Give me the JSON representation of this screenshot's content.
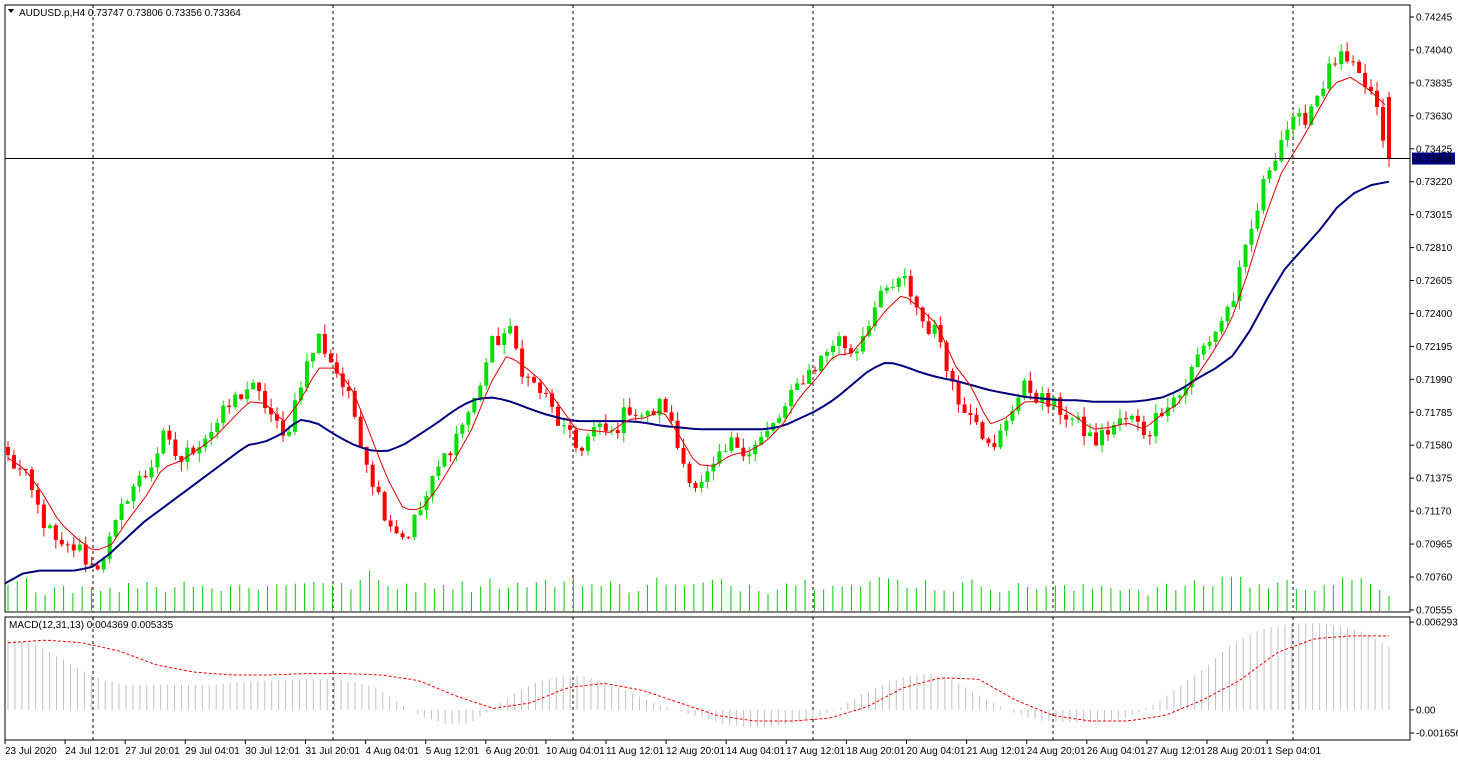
{
  "header": {
    "symbol_line": "AUDUSD.p,H4  0.73747 0.73806 0.73356 0.73364",
    "indicator_line": "MACD(12,31,13) 0.004369 0.005335"
  },
  "colors": {
    "bull": "#00e000",
    "bear": "#ff0000",
    "ma_fast": "#e00000",
    "ma_slow": "#000080",
    "volume": "#00cc00",
    "macd_hist": "#c0c0c0",
    "macd_signal": "#ff0000",
    "current_price_bg": "#000080"
  },
  "chart_data": [
    {
      "type": "candlestick",
      "symbol": "AUDUSD.p",
      "timeframe": "H4",
      "ohlc_header": {
        "open": 0.73747,
        "high": 0.73806,
        "low": 0.73356,
        "close": 0.73364
      },
      "current_price": 0.73364,
      "current_price_label": "0.73364",
      "ylim": [
        0.70555,
        0.74245
      ],
      "y_ticks": [
        "0.74245",
        "0.74040",
        "0.73835",
        "0.73630",
        "0.73425",
        "0.73220",
        "0.73015",
        "0.72810",
        "0.72605",
        "0.72400",
        "0.72195",
        "0.71990",
        "0.71785",
        "0.71580",
        "0.71375",
        "0.71170",
        "0.70965",
        "0.70760",
        "0.70555"
      ],
      "x_ticks": [
        "23 Jul 2020",
        "24 Jul 12:01",
        "27 Jul 20:01",
        "29 Jul 04:01",
        "30 Jul 12:01",
        "31 Jul 20:01",
        "4 Aug 04:01",
        "5 Aug 12:01",
        "6 Aug 20:01",
        "10 Aug 04:01",
        "11 Aug 12:01",
        "12 Aug 20:01",
        "14 Aug 04:01",
        "17 Aug 12:01",
        "18 Aug 20:01",
        "20 Aug 04:01",
        "21 Aug 12:01",
        "24 Aug 20:01",
        "26 Aug 04:01",
        "27 Aug 12:01",
        "28 Aug 20:01",
        "1 Sep 04:01"
      ],
      "close_path": [
        0.715,
        0.7138,
        0.7112,
        0.7092,
        0.7095,
        0.708,
        0.71,
        0.713,
        0.714,
        0.7162,
        0.7148,
        0.716,
        0.717,
        0.7185,
        0.7195,
        0.7182,
        0.716,
        0.72,
        0.7225,
        0.7205,
        0.718,
        0.714,
        0.7112,
        0.71,
        0.712,
        0.7145,
        0.7165,
        0.7185,
        0.722,
        0.723,
        0.72,
        0.719,
        0.717,
        0.7155,
        0.7168,
        0.7165,
        0.7182,
        0.7175,
        0.7185,
        0.715,
        0.713,
        0.7145,
        0.716,
        0.7155,
        0.7165,
        0.718,
        0.72,
        0.721,
        0.7225,
        0.7215,
        0.724,
        0.7255,
        0.726,
        0.7235,
        0.7225,
        0.7185,
        0.718,
        0.715,
        0.718,
        0.7195,
        0.7185,
        0.718,
        0.717,
        0.716,
        0.717,
        0.7175,
        0.7165,
        0.7185,
        0.719,
        0.7215,
        0.723,
        0.725,
        0.729,
        0.733,
        0.7355,
        0.736,
        0.738,
        0.74,
        0.739,
        0.7376,
        0.7336
      ],
      "ma_fast_path": [
        0.715,
        0.7143,
        0.7128,
        0.711,
        0.71,
        0.7092,
        0.7096,
        0.7112,
        0.7126,
        0.7144,
        0.7148,
        0.7155,
        0.7163,
        0.7174,
        0.7185,
        0.7184,
        0.7172,
        0.7186,
        0.7206,
        0.7206,
        0.7193,
        0.7166,
        0.7138,
        0.7118,
        0.7118,
        0.7132,
        0.715,
        0.7169,
        0.7196,
        0.7214,
        0.7207,
        0.7198,
        0.7183,
        0.7168,
        0.7167,
        0.7166,
        0.7174,
        0.7175,
        0.718,
        0.7164,
        0.7146,
        0.7145,
        0.7152,
        0.7154,
        0.716,
        0.7171,
        0.7188,
        0.72,
        0.7214,
        0.7215,
        0.7228,
        0.7242,
        0.7252,
        0.7243,
        0.7233,
        0.7208,
        0.7194,
        0.7171,
        0.7175,
        0.7185,
        0.7185,
        0.7182,
        0.7176,
        0.7168,
        0.7169,
        0.7172,
        0.7168,
        0.7177,
        0.7184,
        0.72,
        0.7216,
        0.7234,
        0.7264,
        0.7299,
        0.7328,
        0.7345,
        0.7364,
        0.7383,
        0.7387,
        0.738,
        0.737
      ],
      "ma_slow_path": [
        0.7072,
        0.7078,
        0.708,
        0.708,
        0.708,
        0.7082,
        0.709,
        0.71,
        0.711,
        0.7118,
        0.7126,
        0.7134,
        0.7142,
        0.715,
        0.7158,
        0.716,
        0.7165,
        0.7174,
        0.7172,
        0.7165,
        0.7159,
        0.7155,
        0.7154,
        0.7158,
        0.7165,
        0.7172,
        0.718,
        0.7186,
        0.7188,
        0.7186,
        0.7182,
        0.7178,
        0.7175,
        0.7173,
        0.7173,
        0.7173,
        0.7173,
        0.7172,
        0.717,
        0.7169,
        0.7168,
        0.7168,
        0.7168,
        0.7168,
        0.7168,
        0.717,
        0.7175,
        0.718,
        0.7187,
        0.7196,
        0.7205,
        0.721,
        0.7207,
        0.7203,
        0.72,
        0.7198,
        0.7195,
        0.7192,
        0.719,
        0.7188,
        0.7187,
        0.7186,
        0.7186,
        0.7185,
        0.7185,
        0.7185,
        0.7186,
        0.7188,
        0.7193,
        0.72,
        0.7206,
        0.7214,
        0.723,
        0.725,
        0.7268,
        0.728,
        0.7292,
        0.7306,
        0.7315,
        0.732,
        0.7322
      ],
      "volume": [
        0.55,
        0.7,
        0.45,
        0.6,
        0.5,
        0.65,
        0.4,
        0.55,
        0.7,
        0.5,
        0.6,
        0.75,
        0.45,
        0.6,
        0.5,
        0.65,
        0.55,
        0.7,
        0.8,
        0.5,
        0.6,
        0.9,
        0.55,
        0.65,
        0.5,
        0.7,
        0.6,
        0.55,
        0.75,
        0.5,
        0.65,
        0.6,
        0.7,
        0.8,
        0.55,
        0.6,
        0.5,
        0.65,
        0.75,
        0.5,
        0.6,
        0.7,
        0.55,
        0.6,
        0.5,
        0.65,
        0.7,
        0.6,
        0.75,
        0.55,
        0.65,
        0.8,
        0.6,
        0.7,
        0.5,
        0.55,
        0.65,
        0.6,
        0.5,
        0.55,
        0.6,
        0.5,
        0.45,
        0.55,
        0.6,
        0.5,
        0.45,
        0.5,
        0.55,
        0.6,
        0.65,
        1.0,
        0.55,
        0.6,
        0.65,
        0.55,
        0.6,
        0.7,
        0.65,
        0.7,
        0.4
      ]
    },
    {
      "type": "macd",
      "label": "MACD(12,31,13)",
      "macd_value": 0.004369,
      "signal_value": 0.005335,
      "ylim": [
        -0.001656,
        0.006293
      ],
      "y_ticks": [
        "0.006293",
        "0.00",
        "-0.001656"
      ],
      "hist_path": [
        0.005,
        0.0048,
        0.004,
        0.003,
        0.0022,
        0.0018,
        0.0018,
        0.0018,
        0.0018,
        0.0018,
        0.002,
        0.0021,
        0.0021,
        0.0022,
        0.0022,
        0.002,
        0.0016,
        0.0005,
        -0.0005,
        -0.001,
        -0.001,
        0.0,
        0.0012,
        0.002,
        0.0024,
        0.0024,
        0.002,
        0.0013,
        0.0005,
        0.0,
        -0.0005,
        -0.001,
        -0.0012,
        -0.0012,
        -0.001,
        -0.0006,
        0.0,
        0.001,
        0.0018,
        0.0024,
        0.0026,
        0.0022,
        0.0012,
        0.0003,
        -0.0004,
        -0.0008,
        -0.0009,
        -0.0009,
        -0.0008,
        -0.0003,
        0.0006,
        0.0018,
        0.003,
        0.0045,
        0.0055,
        0.006,
        0.0062,
        0.0062,
        0.006,
        0.0055,
        0.0045
      ],
      "signal_path": [
        0.0048,
        0.005,
        0.0048,
        0.0042,
        0.0032,
        0.0027,
        0.0025,
        0.0025,
        0.0026,
        0.0026,
        0.0025,
        0.0021,
        0.001,
        0.0001,
        0.0005,
        0.0016,
        0.0019,
        0.0014,
        0.0005,
        -0.0004,
        -0.0008,
        -0.0008,
        -0.0006,
        0.0002,
        0.0016,
        0.0023,
        0.0022,
        0.0007,
        -0.0004,
        -0.0008,
        -0.0008,
        -0.0004,
        0.0007,
        0.0021,
        0.0041,
        0.0051,
        0.0053,
        0.0053
      ]
    }
  ]
}
